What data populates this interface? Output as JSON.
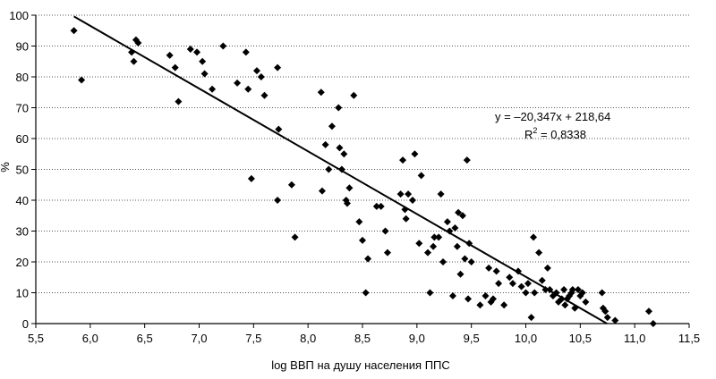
{
  "chart_data": {
    "type": "scatter",
    "title": "",
    "xlabel": "log ВВП на душу населения ППС",
    "ylabel": "%",
    "xlim": [
      5.5,
      11.5
    ],
    "ylim": [
      0,
      100
    ],
    "x_ticks": [
      "5,5",
      "6,0",
      "6,5",
      "7,0",
      "7,5",
      "8,0",
      "8,5",
      "9,0",
      "9,5",
      "10,0",
      "10,5",
      "11,0",
      "11,5"
    ],
    "y_ticks": [
      "0",
      "10",
      "20",
      "30",
      "40",
      "50",
      "60",
      "70",
      "80",
      "90",
      "100"
    ],
    "grid": "horizontal dotted",
    "marker": "diamond",
    "marker_color": "#000000",
    "trendline": {
      "slope": -20.347,
      "intercept": 218.64,
      "equation_label": "y = –20,347x + 218,64",
      "r2_label_prefix": "R",
      "r2_label_sup": "2",
      "r2_label_value": " = 0,8338"
    },
    "points": [
      [
        5.85,
        95
      ],
      [
        5.92,
        79
      ],
      [
        6.38,
        88
      ],
      [
        6.4,
        85
      ],
      [
        6.42,
        92
      ],
      [
        6.44,
        91
      ],
      [
        6.73,
        87
      ],
      [
        6.78,
        83
      ],
      [
        6.81,
        72
      ],
      [
        6.92,
        89
      ],
      [
        6.98,
        88
      ],
      [
        7.03,
        85
      ],
      [
        7.05,
        81
      ],
      [
        7.12,
        76
      ],
      [
        7.22,
        90
      ],
      [
        7.35,
        78
      ],
      [
        7.43,
        88
      ],
      [
        7.45,
        76
      ],
      [
        7.48,
        47
      ],
      [
        7.53,
        82
      ],
      [
        7.57,
        80
      ],
      [
        7.6,
        74
      ],
      [
        7.72,
        83
      ],
      [
        7.73,
        63
      ],
      [
        7.72,
        40
      ],
      [
        7.85,
        45
      ],
      [
        7.88,
        28
      ],
      [
        8.12,
        75
      ],
      [
        8.13,
        43
      ],
      [
        8.16,
        58
      ],
      [
        8.19,
        50
      ],
      [
        8.22,
        64
      ],
      [
        8.28,
        70
      ],
      [
        8.29,
        57
      ],
      [
        8.31,
        50
      ],
      [
        8.33,
        55
      ],
      [
        8.35,
        40
      ],
      [
        8.36,
        39
      ],
      [
        8.38,
        44
      ],
      [
        8.42,
        74
      ],
      [
        8.47,
        33
      ],
      [
        8.5,
        27
      ],
      [
        8.53,
        10
      ],
      [
        8.55,
        21
      ],
      [
        8.63,
        38
      ],
      [
        8.67,
        38
      ],
      [
        8.71,
        30
      ],
      [
        8.73,
        23
      ],
      [
        8.85,
        42
      ],
      [
        8.87,
        53
      ],
      [
        8.89,
        37
      ],
      [
        8.9,
        34
      ],
      [
        8.92,
        42
      ],
      [
        8.96,
        40
      ],
      [
        8.98,
        55
      ],
      [
        9.02,
        26
      ],
      [
        9.04,
        48
      ],
      [
        9.1,
        23
      ],
      [
        9.12,
        10
      ],
      [
        9.15,
        25
      ],
      [
        9.16,
        28
      ],
      [
        9.2,
        28
      ],
      [
        9.22,
        42
      ],
      [
        9.24,
        20
      ],
      [
        9.28,
        33
      ],
      [
        9.3,
        30
      ],
      [
        9.33,
        9
      ],
      [
        9.35,
        31
      ],
      [
        9.37,
        25
      ],
      [
        9.38,
        36
      ],
      [
        9.4,
        16
      ],
      [
        9.42,
        35
      ],
      [
        9.44,
        21
      ],
      [
        9.46,
        53
      ],
      [
        9.47,
        8
      ],
      [
        9.48,
        26
      ],
      [
        9.5,
        20
      ],
      [
        9.58,
        6
      ],
      [
        9.63,
        9
      ],
      [
        9.66,
        18
      ],
      [
        9.68,
        7
      ],
      [
        9.7,
        8
      ],
      [
        9.73,
        17
      ],
      [
        9.75,
        13
      ],
      [
        9.8,
        6
      ],
      [
        9.85,
        15
      ],
      [
        9.88,
        13
      ],
      [
        9.93,
        17
      ],
      [
        9.96,
        12
      ],
      [
        10.0,
        10
      ],
      [
        10.02,
        13
      ],
      [
        10.05,
        2
      ],
      [
        10.07,
        28
      ],
      [
        10.08,
        10
      ],
      [
        10.12,
        23
      ],
      [
        10.15,
        14
      ],
      [
        10.18,
        11
      ],
      [
        10.2,
        18
      ],
      [
        10.22,
        11
      ],
      [
        10.25,
        9
      ],
      [
        10.28,
        10
      ],
      [
        10.3,
        7
      ],
      [
        10.33,
        8
      ],
      [
        10.35,
        11
      ],
      [
        10.36,
        6
      ],
      [
        10.38,
        8
      ],
      [
        10.4,
        9
      ],
      [
        10.42,
        10
      ],
      [
        10.43,
        11
      ],
      [
        10.45,
        5
      ],
      [
        10.48,
        11
      ],
      [
        10.5,
        9
      ],
      [
        10.52,
        10
      ],
      [
        10.55,
        7
      ],
      [
        10.7,
        10
      ],
      [
        10.71,
        5
      ],
      [
        10.73,
        4
      ],
      [
        10.75,
        2
      ],
      [
        10.82,
        1
      ],
      [
        11.13,
        4
      ],
      [
        11.17,
        0
      ]
    ]
  }
}
